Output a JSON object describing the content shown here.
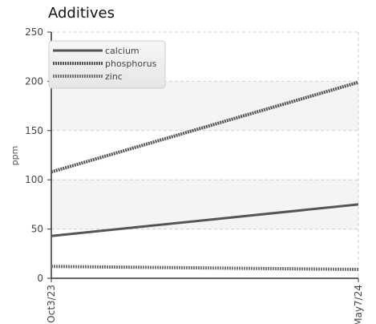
{
  "chart_data": {
    "type": "line",
    "title": "Additives",
    "xlabel": "",
    "ylabel": "ppm",
    "x": [
      "Oct3/23",
      "May7/24"
    ],
    "ylim": [
      0,
      250
    ],
    "yticks": [
      0,
      50,
      100,
      150,
      200,
      250
    ],
    "grid": true,
    "legend_position": "top-left",
    "series": [
      {
        "name": "calcium",
        "values": [
          43,
          75
        ],
        "color": "#555555",
        "style": "solid"
      },
      {
        "name": "phosphorus",
        "values": [
          108,
          199
        ],
        "color": "#555555",
        "style": "dotted"
      },
      {
        "name": "zinc",
        "values": [
          12,
          9
        ],
        "color": "#777777",
        "style": "dotted"
      }
    ]
  }
}
